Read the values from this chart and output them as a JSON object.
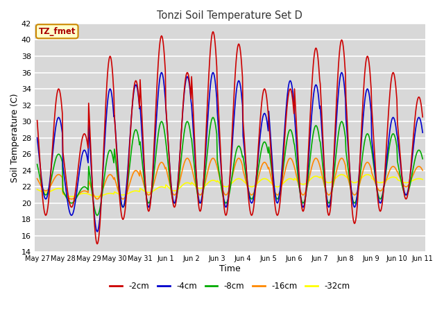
{
  "title": "Tonzi Soil Temperature Set D",
  "xlabel": "Time",
  "ylabel": "Soil Temperature (C)",
  "ylim": [
    14,
    42
  ],
  "yticks": [
    14,
    16,
    18,
    20,
    22,
    24,
    26,
    28,
    30,
    32,
    34,
    36,
    38,
    40,
    42
  ],
  "fig_bg_color": "#ffffff",
  "plot_bg_color": "#d8d8d8",
  "grid_color": "#ffffff",
  "series_colors": {
    "-2cm": "#cc0000",
    "-4cm": "#0000cc",
    "-8cm": "#00aa00",
    "-16cm": "#ff8800",
    "-32cm": "#ffff00"
  },
  "x_tick_labels": [
    "May 27",
    "May 28",
    "May 29",
    "May 30",
    "May 31",
    "Jun 1",
    "Jun 2",
    "Jun 3",
    "Jun 4",
    "Jun 5",
    "Jun 6",
    "Jun 7",
    "Jun 8",
    "Jun 9",
    "Jun 10",
    "Jun 11"
  ],
  "n_days": 15,
  "annotation_text": "TZ_fmet",
  "annotation_color": "#aa0000",
  "annotation_bg": "#ffffcc",
  "annotation_edge": "#cc8800"
}
